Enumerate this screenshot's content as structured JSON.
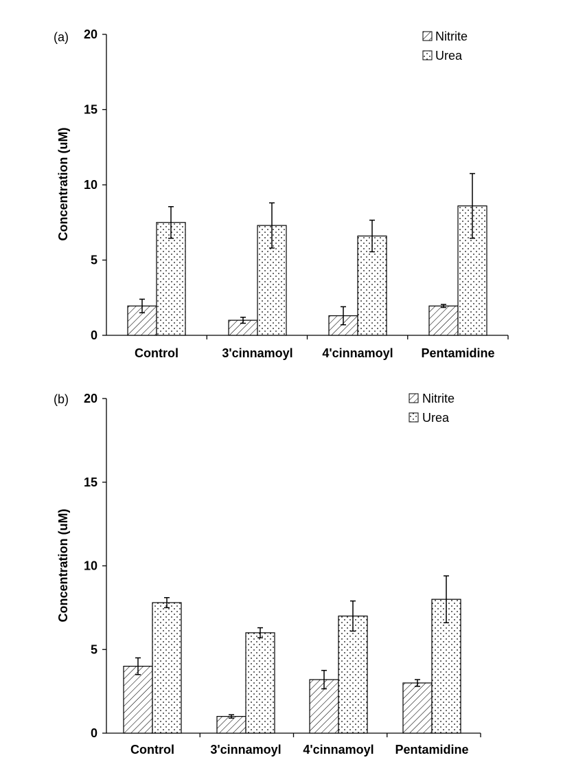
{
  "chart_data": [
    {
      "panel_label": "(a)",
      "type": "bar",
      "categories": [
        "Control",
        "3'cinnamoyl",
        "4'cinnamoyl",
        "Pentamidine"
      ],
      "series": [
        {
          "name": "Nitrite",
          "values": [
            1.95,
            1.0,
            1.3,
            1.95
          ],
          "errors": [
            0.45,
            0.2,
            0.6,
            0.1
          ],
          "pattern": "diagonal-hatch"
        },
        {
          "name": "Urea",
          "values": [
            7.5,
            7.3,
            6.6,
            8.6
          ],
          "errors": [
            1.05,
            1.5,
            1.05,
            2.15
          ],
          "pattern": "dots"
        }
      ],
      "ylabel": "Concentration (uM)",
      "xlabel": "",
      "ylim": [
        0,
        20
      ],
      "yticks": [
        "0",
        "5",
        "10",
        "15",
        "20"
      ],
      "legend_position": "top-right",
      "grid": false
    },
    {
      "panel_label": "(b)",
      "type": "bar",
      "categories": [
        "Control",
        "3'cinnamoyl",
        "4'cinnamoyl",
        "Pentamidine"
      ],
      "series": [
        {
          "name": "Nitrite",
          "values": [
            4.0,
            1.0,
            3.2,
            3.0
          ],
          "errors": [
            0.5,
            0.1,
            0.55,
            0.2
          ],
          "pattern": "diagonal-hatch"
        },
        {
          "name": "Urea",
          "values": [
            7.8,
            6.0,
            7.0,
            8.0
          ],
          "errors": [
            0.3,
            0.3,
            0.9,
            1.4
          ],
          "pattern": "dots"
        }
      ],
      "ylabel": "Concentration (uM)",
      "xlabel": "",
      "ylim": [
        0,
        20
      ],
      "yticks": [
        "0",
        "5",
        "10",
        "15",
        "20"
      ],
      "legend_position": "top-right",
      "grid": false
    }
  ]
}
